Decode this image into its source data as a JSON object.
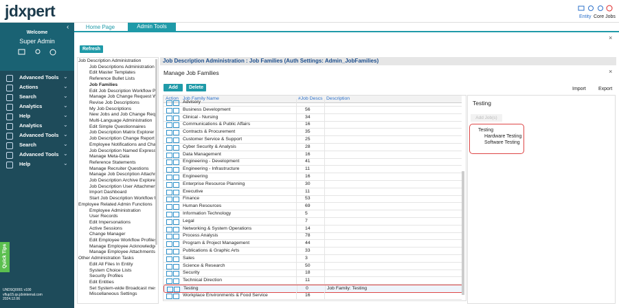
{
  "header": {
    "logo": "jdxpert",
    "links": [
      "Entity",
      "Core Jobs"
    ]
  },
  "sidebar": {
    "welcome": "Welcome",
    "user": "Super Admin",
    "menu": [
      "Advanced Tools",
      "Actions",
      "Search",
      "Analytics",
      "Help",
      "Analytics",
      "Advanced Tools",
      "Search",
      "Advanced Tools",
      "Help"
    ],
    "footer": [
      "UNDSQ0001 v100",
      "vflup15.qs.jdxinternal.com",
      "2024.12.06"
    ],
    "quick_tips": "Quick Tips"
  },
  "tabs": [
    "Home Page",
    "Admin Tools"
  ],
  "refresh": "Refresh",
  "tree": [
    {
      "group": "Job Description Administration",
      "items": [
        "Job Descriptions Administration",
        "Edit Master Templates",
        "Reference Bullet Lists",
        "Job Families",
        "Edit Job Description Workflow Pro",
        "Manage Job Change Request Workflows",
        "Revise Job Descriptions",
        "My Job Descriptions",
        "New Jobs and Job Change Requests A",
        "Multi-Language Administration",
        "Edit Simple Questionnaires",
        "Job Description Matrix Explorer",
        "Job Description Change Report",
        "Employee Notifications and Chang",
        "Job Description Named Expressior",
        "Manage Meta-Data",
        "Reference Statements",
        "Manage Recruiter Questions",
        "Manage Job Description Attachme",
        "Job Description Archive Explorer",
        "Job Description User Attachments",
        "Import Dashboard",
        "Start Job Description Workflow for"
      ]
    },
    {
      "group": "Employee Related Admin Functions",
      "items": [
        "Employee Administration",
        "User Records",
        "Edit Impersonations",
        "Active Sessions",
        "Change Manager",
        "Edit Employee Workflow Profiles",
        "Manage Employee Acknowledgem",
        "Manage Employee Attachments"
      ]
    },
    {
      "group": "Other Administration Tasks",
      "items": [
        "Edit All Files In Entity",
        "System Choice Lists",
        "Security Profiles",
        "Edit Entities",
        "Set System-wide Broadcast messa",
        "Miscellaneous Settings"
      ]
    }
  ],
  "panel": {
    "heading": "Job Description Administration : Job Families (Auth Settings: Admin_JobFamilies)",
    "title": "Manage Job Families",
    "buttons": [
      "Add",
      "Delete"
    ],
    "columns": [
      "Action",
      "Job Family Name",
      "#Job Descs",
      "Description"
    ],
    "rows": [
      {
        "name": "Advisory"
      },
      {
        "name": "Business Development",
        "count": 56
      },
      {
        "name": "Clinical - Nursing",
        "count": 34
      },
      {
        "name": "Communications & Public Affairs",
        "count": 16
      },
      {
        "name": "Contracts & Procurement",
        "count": 35
      },
      {
        "name": "Customer Service & Support",
        "count": 25
      },
      {
        "name": "Cyber Security & Analysis",
        "count": 28
      },
      {
        "name": "Data Management",
        "count": 16
      },
      {
        "name": "Engineering - Development",
        "count": 41
      },
      {
        "name": "Engineering - Infrastructure",
        "count": 11
      },
      {
        "name": "Engineering",
        "count": 16
      },
      {
        "name": "Enterprise Resource Planning",
        "count": 30
      },
      {
        "name": "Executive",
        "count": 11
      },
      {
        "name": "Finance",
        "count": 53
      },
      {
        "name": "Human Resources",
        "count": 69
      },
      {
        "name": "Information Technology",
        "count": 5
      },
      {
        "name": "Legal",
        "count": 7
      },
      {
        "name": "Networking & System Operations",
        "count": 14
      },
      {
        "name": "Process Analysis",
        "count": 78
      },
      {
        "name": "Program & Project Management",
        "count": 44
      },
      {
        "name": "Publications & Graphic Arts",
        "count": 33
      },
      {
        "name": "Sales",
        "count": 3
      },
      {
        "name": "Science & Research",
        "count": 50
      },
      {
        "name": "Security",
        "count": 18
      },
      {
        "name": "Technical Direction",
        "count": 11
      },
      {
        "name": "Testing",
        "count": 0,
        "description": "Job Family: Testing"
      },
      {
        "name": "Workplace Environments & Food Service",
        "count": 16
      }
    ]
  },
  "detail": {
    "import": "Import",
    "export": "Export",
    "title": "Testing",
    "add_jobs": "Add Job(s)",
    "tree": {
      "root": "Testing",
      "children": [
        "Hardware Testing",
        "Software Testing"
      ]
    }
  }
}
